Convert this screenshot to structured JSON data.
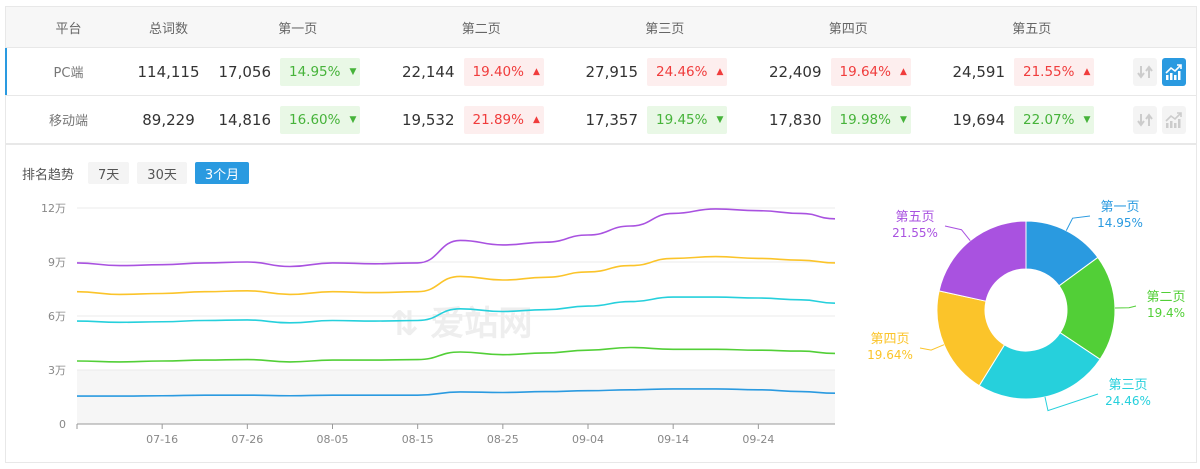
{
  "table": {
    "headers": [
      "平台",
      "总词数",
      "第一页",
      "第二页",
      "第三页",
      "第四页",
      "第五页"
    ],
    "rows": [
      {
        "platform": "PC端",
        "total": "114,115",
        "selected": true,
        "pages": [
          {
            "count": "17,056",
            "pct": "14.95%",
            "trend": "down"
          },
          {
            "count": "22,144",
            "pct": "19.40%",
            "trend": "up"
          },
          {
            "count": "27,915",
            "pct": "24.46%",
            "trend": "up"
          },
          {
            "count": "22,409",
            "pct": "19.64%",
            "trend": "up"
          },
          {
            "count": "24,591",
            "pct": "21.55%",
            "trend": "up"
          }
        ]
      },
      {
        "platform": "移动端",
        "total": "89,229",
        "selected": false,
        "pages": [
          {
            "count": "14,816",
            "pct": "16.60%",
            "trend": "down"
          },
          {
            "count": "19,532",
            "pct": "21.89%",
            "trend": "up"
          },
          {
            "count": "17,357",
            "pct": "19.45%",
            "trend": "down"
          },
          {
            "count": "17,830",
            "pct": "19.98%",
            "trend": "down"
          },
          {
            "count": "19,694",
            "pct": "22.07%",
            "trend": "down"
          }
        ]
      }
    ],
    "arrows": {
      "up": "▲",
      "down": "▼"
    }
  },
  "trend": {
    "label": "排名趋势",
    "ranges": [
      {
        "label": "7天",
        "active": false
      },
      {
        "label": "30天",
        "active": false
      },
      {
        "label": "3个月",
        "active": true
      }
    ]
  },
  "watermark": "爱站网",
  "colors": {
    "accent": "#2a9ae0",
    "up": "#f03c3c",
    "down": "#46b33a"
  },
  "chart_data": [
    {
      "type": "line",
      "y_unit": "万",
      "ylim": [
        0,
        12
      ],
      "y_ticks": [
        "0",
        "3万",
        "6万",
        "9万",
        "12万"
      ],
      "x_tick_labels": [
        "07-16",
        "07-26",
        "08-05",
        "08-15",
        "08-25",
        "09-04",
        "09-14",
        "09-24"
      ],
      "x": [
        "07-06",
        "07-11",
        "07-16",
        "07-21",
        "07-26",
        "07-31",
        "08-05",
        "08-10",
        "08-15",
        "08-20",
        "08-25",
        "08-30",
        "09-04",
        "09-09",
        "09-14",
        "09-19",
        "09-24",
        "09-29",
        "10-03"
      ],
      "grid": true,
      "series": [
        {
          "color": "#2a9ae0",
          "values": [
            1.55,
            1.55,
            1.57,
            1.6,
            1.6,
            1.57,
            1.6,
            1.6,
            1.6,
            1.78,
            1.75,
            1.8,
            1.85,
            1.9,
            1.95,
            1.95,
            1.9,
            1.8,
            1.71
          ]
        },
        {
          "color": "#52cf37",
          "values": [
            3.5,
            3.45,
            3.5,
            3.55,
            3.58,
            3.45,
            3.55,
            3.55,
            3.58,
            4.0,
            3.85,
            3.95,
            4.1,
            4.25,
            4.15,
            4.15,
            4.1,
            4.05,
            3.92
          ]
        },
        {
          "color": "#26d0dc",
          "values": [
            5.72,
            5.65,
            5.68,
            5.75,
            5.78,
            5.62,
            5.75,
            5.72,
            5.75,
            6.4,
            6.25,
            6.35,
            6.55,
            6.8,
            7.05,
            7.05,
            7.0,
            6.9,
            6.71
          ]
        },
        {
          "color": "#fbc42a",
          "values": [
            7.35,
            7.2,
            7.25,
            7.35,
            7.4,
            7.2,
            7.35,
            7.3,
            7.35,
            8.2,
            8.0,
            8.15,
            8.45,
            8.8,
            9.2,
            9.3,
            9.2,
            9.1,
            8.95
          ]
        },
        {
          "color": "#a952e0",
          "values": [
            8.95,
            8.8,
            8.85,
            8.95,
            9.0,
            8.75,
            8.95,
            8.9,
            8.95,
            10.2,
            9.95,
            10.1,
            10.5,
            11.0,
            11.7,
            11.95,
            11.85,
            11.7,
            11.4
          ]
        }
      ]
    },
    {
      "type": "pie",
      "donut": true,
      "slices": [
        {
          "name": "第一页",
          "label": "14.95%",
          "value": 14.95,
          "color": "#2a9ae0"
        },
        {
          "name": "第二页",
          "label": "19.4%",
          "value": 19.4,
          "color": "#52cf37"
        },
        {
          "name": "第三页",
          "label": "24.46%",
          "value": 24.46,
          "color": "#26d0dc"
        },
        {
          "name": "第四页",
          "label": "19.64%",
          "value": 19.64,
          "color": "#fbc42a"
        },
        {
          "name": "第五页",
          "label": "21.55%",
          "value": 21.55,
          "color": "#a952e0"
        }
      ]
    }
  ]
}
